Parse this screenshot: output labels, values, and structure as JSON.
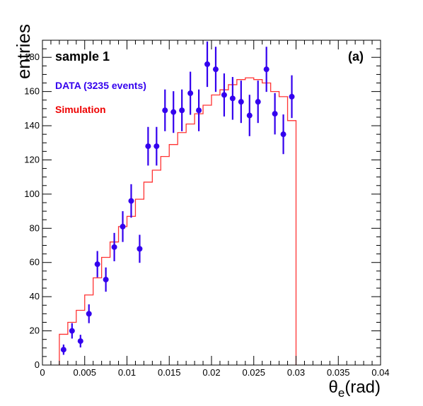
{
  "chart_data": {
    "type": "scatter",
    "title": "",
    "xlabel": "θe(rad)",
    "xlabel_main": "θ",
    "xlabel_sub": "e",
    "xlabel_unit": "(rad)",
    "ylabel": "entries",
    "xlim": [
      0,
      0.04
    ],
    "ylim": [
      0,
      190
    ],
    "x_ticks": [
      "0",
      "0.005",
      "0.01",
      "0.015",
      "0.02",
      "0.025",
      "0.03",
      "0.035",
      "0.04"
    ],
    "y_ticks": [
      "0",
      "20",
      "40",
      "60",
      "80",
      "100",
      "120",
      "140",
      "160",
      "180"
    ],
    "grid": false,
    "legend_placement": "top-left",
    "annotations": {
      "sample_label": "sample 1",
      "panel_label": "(a)"
    },
    "series": [
      {
        "name": "DATA (3235 events)",
        "kind": "points-with-errors",
        "color": "#3300ee",
        "x": [
          0.0025,
          0.0035,
          0.0045,
          0.0055,
          0.0065,
          0.0075,
          0.0085,
          0.0095,
          0.0105,
          0.0115,
          0.0125,
          0.0135,
          0.0145,
          0.0155,
          0.0165,
          0.0175,
          0.0185,
          0.0195,
          0.0205,
          0.0215,
          0.0225,
          0.0235,
          0.0245,
          0.0255,
          0.0265,
          0.0275,
          0.0285,
          0.0295
        ],
        "y": [
          9,
          20,
          14,
          30,
          59,
          50,
          69,
          81,
          96,
          68,
          128,
          128,
          149,
          148,
          149,
          159,
          149,
          176,
          173,
          158,
          156,
          154,
          146,
          154,
          173,
          147,
          135,
          157
        ],
        "yerr": [
          3,
          4.5,
          3.7,
          5.5,
          7.7,
          7.1,
          8.3,
          9,
          9.8,
          8.2,
          11.3,
          11.3,
          12.2,
          12.2,
          12.2,
          12.6,
          12.2,
          13.3,
          13.2,
          12.6,
          12.5,
          12.4,
          12.1,
          12.4,
          13.2,
          12.1,
          11.6,
          12.5
        ]
      },
      {
        "name": "Simulation",
        "kind": "step-histogram",
        "color": "#ff3333",
        "bin_edges": [
          0.002,
          0.003,
          0.004,
          0.005,
          0.006,
          0.007,
          0.008,
          0.009,
          0.01,
          0.011,
          0.012,
          0.013,
          0.014,
          0.015,
          0.016,
          0.017,
          0.018,
          0.019,
          0.02,
          0.021,
          0.022,
          0.023,
          0.024,
          0.025,
          0.026,
          0.027,
          0.028,
          0.029,
          0.03
        ],
        "values": [
          18,
          25,
          32,
          41,
          51,
          63,
          72,
          81,
          87,
          97,
          107,
          114,
          122,
          129,
          136,
          141,
          147,
          152,
          158,
          161,
          164,
          167,
          168,
          167,
          165,
          160,
          157,
          143
        ]
      }
    ]
  }
}
